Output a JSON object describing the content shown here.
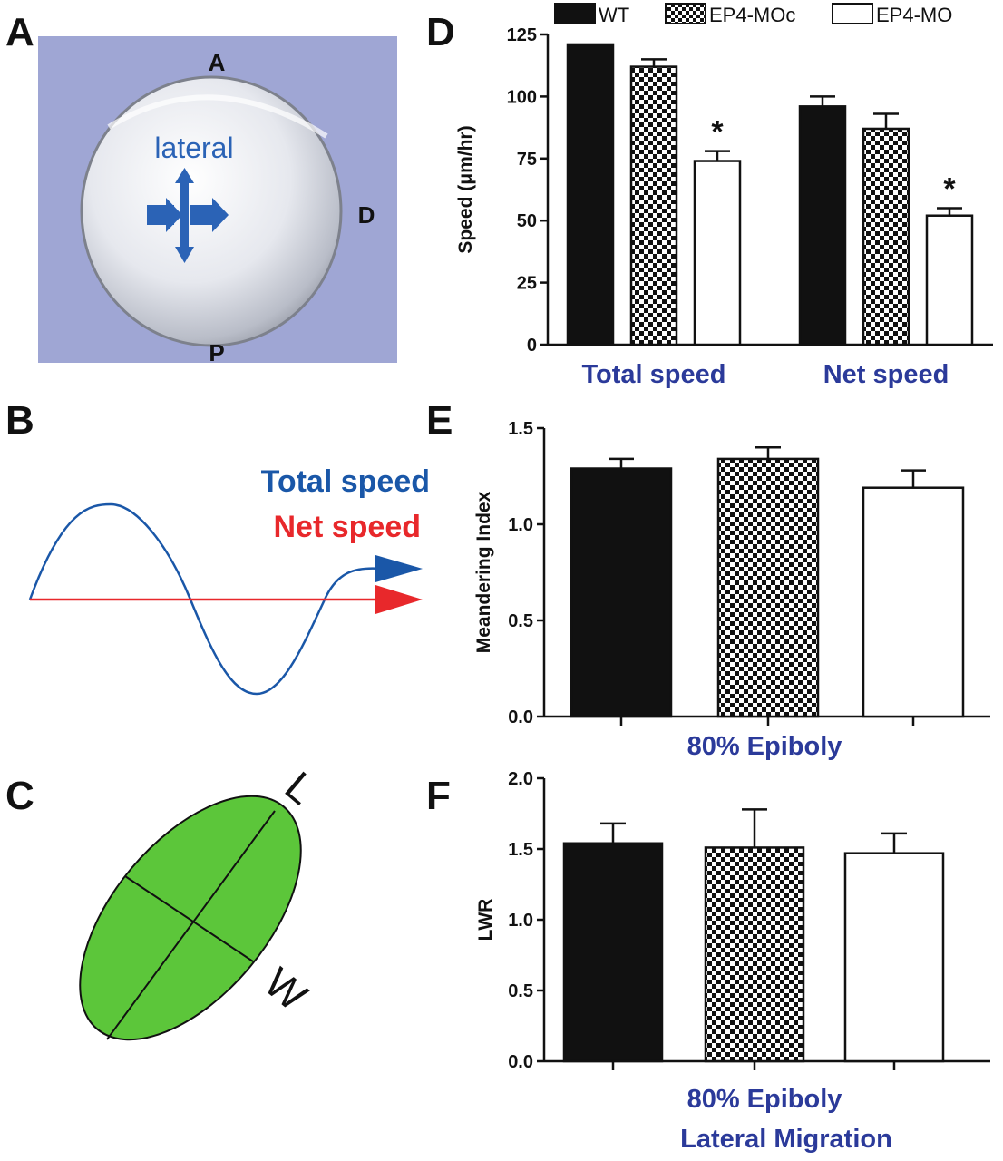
{
  "panels": {
    "a": {
      "letter": "A",
      "label_a": "A",
      "label_d": "D",
      "label_p": "P",
      "lateral": "lateral"
    },
    "b": {
      "letter": "B",
      "total": "Total speed",
      "net": "Net speed"
    },
    "c": {
      "letter": "C",
      "l": "L",
      "w": "W"
    },
    "d": {
      "letter": "D"
    },
    "e": {
      "letter": "E"
    },
    "f": {
      "letter": "F"
    }
  },
  "colors": {
    "embryo_bg": "#9fa6d4",
    "arrow_blue": "#2b63b6",
    "total_speed": "#1a57a8",
    "net_speed": "#e8282b",
    "ellipse": "#5cc63a",
    "category_text": "#2b3a9a",
    "wt_bar": "#111111"
  },
  "chart_data": [
    {
      "id": "D",
      "type": "bar",
      "ylabel": "Speed (μm/hr)",
      "ylim": [
        0,
        125
      ],
      "yticks": [
        0,
        25,
        50,
        75,
        100,
        125
      ],
      "categories": [
        "Total speed",
        "Net speed"
      ],
      "legend": {
        "placement": "top",
        "entries": [
          "WT",
          "EP4-MOc",
          "EP4-MO"
        ]
      },
      "series": [
        {
          "name": "WT",
          "fill": "solid",
          "values": [
            121,
            96
          ],
          "errors": [
            0,
            4
          ]
        },
        {
          "name": "EP4-MOc",
          "fill": "checker",
          "values": [
            112,
            87
          ],
          "errors": [
            3,
            6
          ]
        },
        {
          "name": "EP4-MO",
          "fill": "open",
          "values": [
            74,
            52
          ],
          "errors": [
            4,
            3
          ]
        }
      ],
      "annotations": [
        {
          "text": "*",
          "category": "Total speed",
          "series": "EP4-MO"
        },
        {
          "text": "*",
          "category": "Net speed",
          "series": "EP4-MO"
        }
      ]
    },
    {
      "id": "E",
      "type": "bar",
      "ylabel": "Meandering Index",
      "ylim": [
        0,
        1.5
      ],
      "yticks": [
        "0.0",
        "0.5",
        "1.0",
        "1.5"
      ],
      "xlabel": "80% Epiboly",
      "bars": [
        {
          "series": "WT",
          "fill": "solid",
          "value": 1.29,
          "error": 0.05
        },
        {
          "series": "EP4-MOc",
          "fill": "checker",
          "value": 1.34,
          "error": 0.06
        },
        {
          "series": "EP4-MO",
          "fill": "open",
          "value": 1.19,
          "error": 0.09
        }
      ]
    },
    {
      "id": "F",
      "type": "bar",
      "ylabel": "LWR",
      "ylim": [
        0,
        2.0
      ],
      "yticks": [
        "0.0",
        "0.5",
        "1.0",
        "1.5",
        "2.0"
      ],
      "xlabel": "80% Epiboly",
      "xlabel2": "Lateral Migration",
      "bars": [
        {
          "series": "WT",
          "fill": "solid",
          "value": 1.54,
          "error": 0.14
        },
        {
          "series": "EP4-MOc",
          "fill": "checker",
          "value": 1.51,
          "error": 0.27
        },
        {
          "series": "EP4-MO",
          "fill": "open",
          "value": 1.47,
          "error": 0.14
        }
      ]
    }
  ]
}
